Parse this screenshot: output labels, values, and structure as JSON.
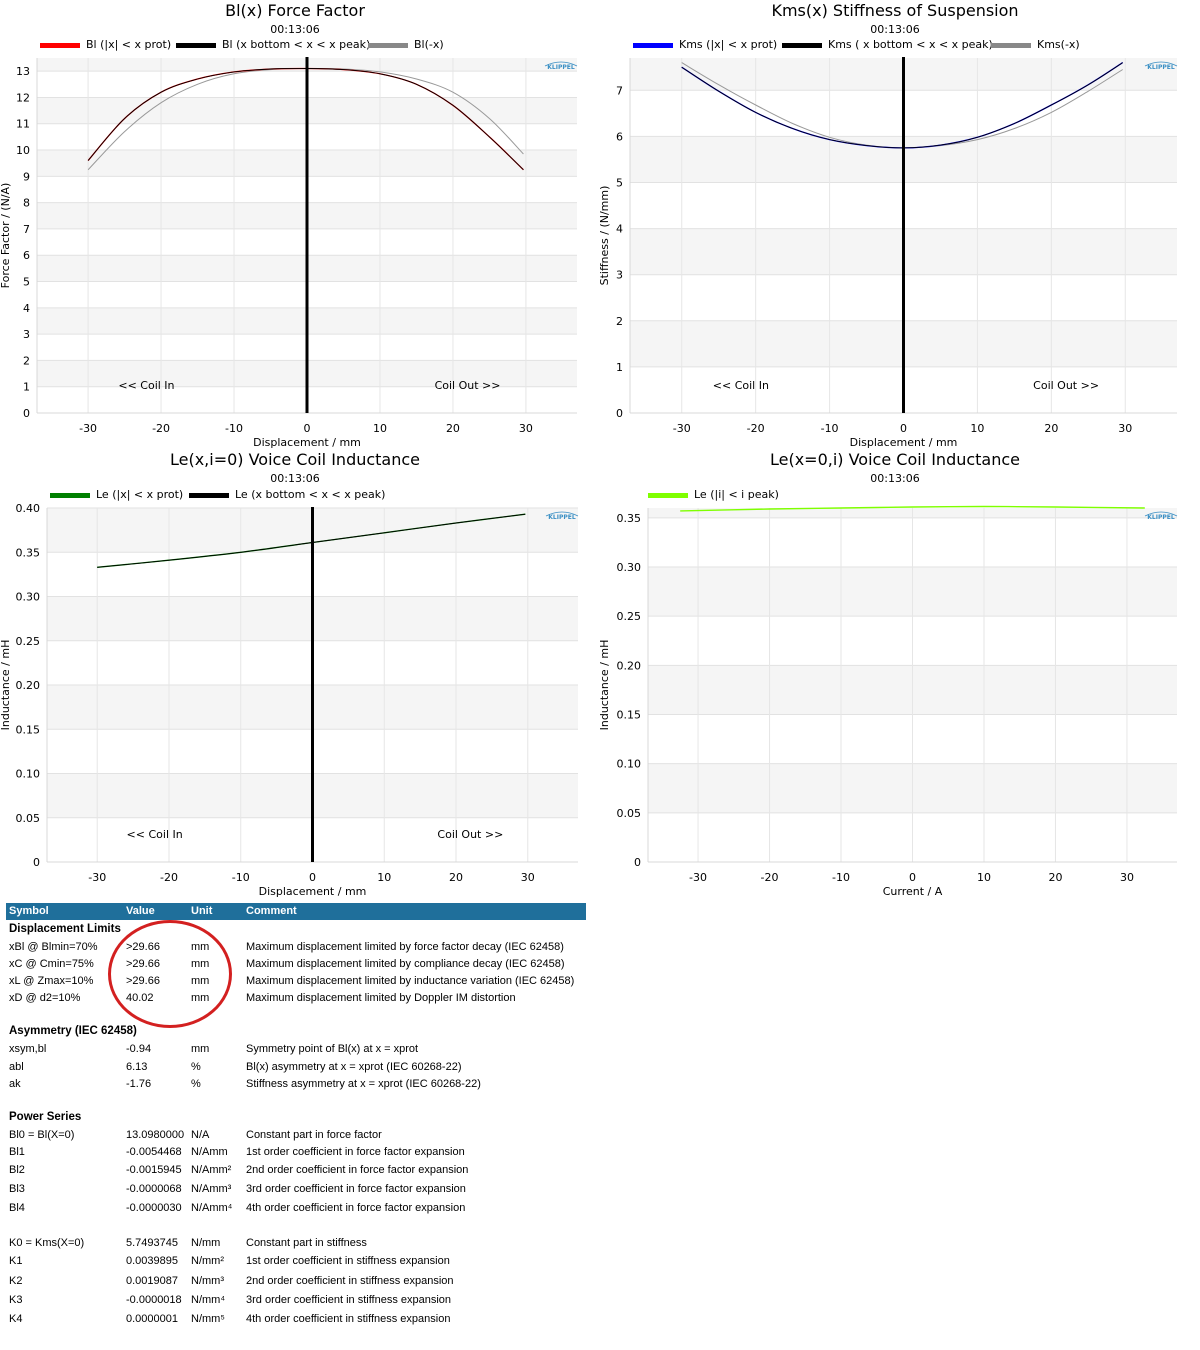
{
  "charts": [
    {
      "id": "bl",
      "title": "Bl(x) Force Factor",
      "time": "00:13:06",
      "legend": [
        {
          "label": "Bl (|x| < x prot)",
          "color": "#ff0000"
        },
        {
          "label": "Bl (x bottom < x < x peak)",
          "color": "#000000"
        },
        {
          "label": "Bl(-x)",
          "color": "#888888"
        }
      ],
      "xlabel": "Displacement / mm",
      "ylabel": "Force Factor / (N/A)",
      "xticks": [
        "-30",
        "-20",
        "-10",
        "0",
        "10",
        "20",
        "30"
      ],
      "yticks": [
        "0",
        "1",
        "2",
        "3",
        "4",
        "5",
        "6",
        "7",
        "8",
        "9",
        "10",
        "11",
        "12",
        "13"
      ],
      "annot_left": "<< Coil In",
      "annot_right": "Coil Out >>",
      "logo": "KLIPPEL"
    },
    {
      "id": "kms",
      "title": "Kms(x) Stiffness of Suspension",
      "time": "00:13:06",
      "legend": [
        {
          "label": "Kms (|x| < x prot)",
          "color": "#0000ff"
        },
        {
          "label": "Kms ( x bottom < x < x peak)",
          "color": "#000000"
        },
        {
          "label": "Kms(-x)",
          "color": "#888888"
        }
      ],
      "xlabel": "Displacement / mm",
      "ylabel": "Stiffness / (N/mm)",
      "xticks": [
        "-30",
        "-20",
        "-10",
        "0",
        "10",
        "20",
        "30"
      ],
      "yticks": [
        "0",
        "1",
        "2",
        "3",
        "4",
        "5",
        "6",
        "7"
      ],
      "annot_left": "<< Coil In",
      "annot_right": "Coil Out >>",
      "logo": "KLIPPEL"
    },
    {
      "id": "le",
      "title": "Le(x,i=0) Voice Coil Inductance",
      "time": "00:13:06",
      "legend": [
        {
          "label": "Le (|x| < x prot)",
          "color": "#008000"
        },
        {
          "label": "Le (x bottom < x < x peak)",
          "color": "#000000"
        }
      ],
      "xlabel": "Displacement / mm",
      "ylabel": "Inductance / mH",
      "xticks": [
        "-30",
        "-20",
        "-10",
        "0",
        "10",
        "20",
        "30"
      ],
      "yticks": [
        "0",
        "0.05",
        "0.10",
        "0.15",
        "0.20",
        "0.25",
        "0.30",
        "0.35",
        "0.40"
      ],
      "annot_left": "<< Coil In",
      "annot_right": "Coil Out >>",
      "logo": "KLIPPEL"
    },
    {
      "id": "lei",
      "title": "Le(x=0,i) Voice Coil Inductance",
      "time": "00:13:06",
      "legend": [
        {
          "label": "Le (|i| < i peak)",
          "color": "#7fff00"
        }
      ],
      "xlabel": "Current / A",
      "ylabel": "Inductance / mH",
      "xticks": [
        "-30",
        "-20",
        "-10",
        "0",
        "10",
        "20",
        "30"
      ],
      "yticks": [
        "0",
        "0.05",
        "0.10",
        "0.15",
        "0.20",
        "0.25",
        "0.30",
        "0.35"
      ],
      "logo": "KLIPPEL"
    }
  ],
  "chart_data": [
    {
      "type": "line",
      "title": "Bl(x) Force Factor",
      "xlabel": "Displacement / mm",
      "ylabel": "Force Factor / (N/A)",
      "xlim": [
        -37,
        37
      ],
      "ylim": [
        0,
        13.5
      ],
      "x": [
        -30,
        -25,
        -20,
        -15,
        -10,
        -5,
        0,
        5,
        10,
        15,
        20,
        25,
        29.66
      ],
      "series": [
        {
          "name": "Bl (|x| < x prot)",
          "color": "#ff0000",
          "values": [
            9.6,
            11.2,
            12.2,
            12.7,
            12.97,
            13.08,
            13.1,
            13.06,
            12.9,
            12.5,
            11.7,
            10.5,
            9.25
          ]
        },
        {
          "name": "Bl (x bottom < x < x peak)",
          "color": "#000000",
          "values": [
            9.6,
            11.2,
            12.2,
            12.7,
            12.97,
            13.08,
            13.1,
            13.06,
            12.9,
            12.5,
            11.7,
            10.5,
            9.25
          ]
        },
        {
          "name": "Bl(-x)",
          "color": "#999999",
          "values": [
            9.25,
            10.7,
            11.8,
            12.5,
            12.9,
            13.06,
            13.1,
            13.08,
            12.97,
            12.7,
            12.2,
            11.2,
            9.85
          ]
        }
      ],
      "cursor_x": 0,
      "grid": true,
      "legend_position": "top"
    },
    {
      "type": "line",
      "title": "Kms(x) Stiffness of Suspension",
      "xlabel": "Displacement / mm",
      "ylabel": "Stiffness / (N/mm)",
      "xlim": [
        -37,
        37
      ],
      "ylim": [
        0,
        7.7
      ],
      "x": [
        -30,
        -25,
        -20,
        -15,
        -10,
        -5,
        0,
        5,
        10,
        15,
        20,
        25,
        29.66
      ],
      "series": [
        {
          "name": "Kms (|x| < x prot)",
          "color": "#0000ff",
          "values": [
            7.5,
            6.98,
            6.52,
            6.17,
            5.93,
            5.8,
            5.75,
            5.81,
            5.98,
            6.28,
            6.68,
            7.12,
            7.6
          ]
        },
        {
          "name": "Kms ( x bottom < x < x peak)",
          "color": "#000000",
          "values": [
            7.5,
            6.98,
            6.52,
            6.17,
            5.93,
            5.8,
            5.75,
            5.81,
            5.98,
            6.28,
            6.68,
            7.12,
            7.6
          ]
        },
        {
          "name": "Kms(-x)",
          "color": "#999999",
          "values": [
            7.6,
            7.12,
            6.68,
            6.28,
            5.98,
            5.81,
            5.75,
            5.8,
            5.93,
            6.17,
            6.52,
            6.98,
            7.45
          ]
        }
      ],
      "cursor_x": 0,
      "grid": true,
      "legend_position": "top"
    },
    {
      "type": "line",
      "title": "Le(x,i=0) Voice Coil Inductance",
      "xlabel": "Displacement / mm",
      "ylabel": "Inductance / mH",
      "xlim": [
        -37,
        37
      ],
      "ylim": [
        0,
        0.4
      ],
      "x": [
        -30,
        -20,
        -10,
        0,
        10,
        20,
        29.66
      ],
      "series": [
        {
          "name": "Le (|x| < x prot)",
          "color": "#008000",
          "values": [
            0.333,
            0.341,
            0.35,
            0.361,
            0.372,
            0.383,
            0.393
          ]
        },
        {
          "name": "Le (x bottom < x < x peak)",
          "color": "#000000",
          "values": [
            0.333,
            0.341,
            0.35,
            0.361,
            0.372,
            0.383,
            0.393
          ]
        }
      ],
      "cursor_x": 0,
      "grid": true,
      "legend_position": "top"
    },
    {
      "type": "line",
      "title": "Le(x=0,i) Voice Coil Inductance",
      "xlabel": "Current / A",
      "ylabel": "Inductance / mH",
      "xlim": [
        -37,
        37
      ],
      "ylim": [
        0,
        0.36
      ],
      "x": [
        -32.5,
        -20,
        -10,
        0,
        10,
        20,
        32.5
      ],
      "series": [
        {
          "name": "Le (|i| < i peak)",
          "color": "#7fff00",
          "values": [
            0.357,
            0.359,
            0.36,
            0.361,
            0.3615,
            0.361,
            0.36
          ]
        }
      ],
      "grid": true,
      "legend_position": "top"
    }
  ],
  "table": {
    "headers": {
      "symbol": "Symbol",
      "value": "Value",
      "unit": "Unit",
      "comment": "Comment"
    },
    "header_color": "#1f6f9b",
    "highlight_color": "#d32020",
    "sections": [
      {
        "title": "Displacement Limits",
        "rows": [
          {
            "symbol": "xBl @ Blmin=70%",
            "value": ">29.66",
            "unit": "mm",
            "comment": "Maximum displacement limited by force factor decay (IEC 62458)"
          },
          {
            "symbol": "xC @ Cmin=75%",
            "value": ">29.66",
            "unit": "mm",
            "comment": "Maximum displacement limited by compliance decay (IEC 62458)"
          },
          {
            "symbol": "xL @ Zmax=10%",
            "value": ">29.66",
            "unit": "mm",
            "comment": "Maximum displacement limited by inductance variation (IEC 62458)"
          },
          {
            "symbol": "xD @ d2=10%",
            "value": "40.02",
            "unit": "mm",
            "comment": "Maximum displacement limited by Doppler IM distortion"
          }
        ]
      },
      {
        "title": "Asymmetry (IEC 62458)",
        "rows": [
          {
            "symbol": "xsym,bl",
            "value": "-0.94",
            "unit": "mm",
            "comment": "Symmetry point of Bl(x) at x = xprot"
          },
          {
            "symbol": "abl",
            "value": "6.13",
            "unit": "%",
            "comment": "Bl(x) asymmetry at x = xprot (IEC 60268-22)"
          },
          {
            "symbol": "ak",
            "value": "-1.76",
            "unit": "%",
            "comment": "Stiffness asymmetry at x = xprot (IEC 60268-22)"
          }
        ]
      },
      {
        "title": "Power Series",
        "rows": [
          {
            "symbol": "Bl0 = Bl(X=0)",
            "value": "13.0980000",
            "unit": "N/A",
            "comment": "Constant part in force factor"
          },
          {
            "symbol": "Bl1",
            "value": "-0.0054468",
            "unit": "N/Amm",
            "comment": "1st order coefficient in force factor expansion"
          },
          {
            "symbol": "Bl2",
            "value": "-0.0015945",
            "unit": "N/Amm²",
            "comment": "2nd order coefficient in force factor expansion"
          },
          {
            "symbol": "Bl3",
            "value": "-0.0000068",
            "unit": "N/Amm³",
            "comment": "3rd order coefficient in force factor expansion"
          },
          {
            "symbol": "Bl4",
            "value": "-0.0000030",
            "unit": "N/Amm⁴",
            "comment": "4th order coefficient in force factor expansion"
          },
          {
            "symbol": "K0 = Kms(X=0)",
            "value": "5.7493745",
            "unit": "N/mm",
            "comment": "Constant part in stiffness"
          },
          {
            "symbol": "K1",
            "value": "0.0039895",
            "unit": "N/mm²",
            "comment": "1st order coefficient in stiffness expansion"
          },
          {
            "symbol": "K2",
            "value": "0.0019087",
            "unit": "N/mm³",
            "comment": "2nd order coefficient in stiffness expansion"
          },
          {
            "symbol": "K3",
            "value": "-0.0000018",
            "unit": "N/mm⁴",
            "comment": "3rd order coefficient in stiffness expansion"
          },
          {
            "symbol": "K4",
            "value": "0.0000001",
            "unit": "N/mm⁵",
            "comment": "4th order coefficient in stiffness expansion"
          }
        ]
      }
    ]
  }
}
